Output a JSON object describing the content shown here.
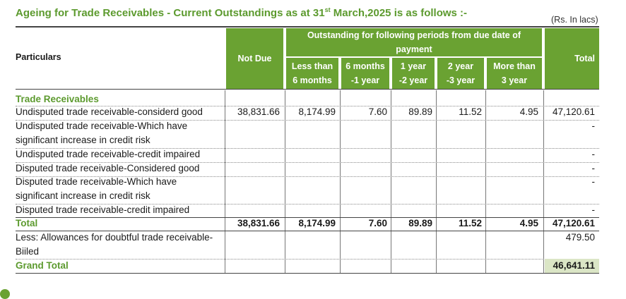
{
  "title_main": "Ageing for Trade Receivables - Current Outstandings as at 31",
  "title_sup": "st",
  "title_tail": " March,2025 is as follows :-",
  "unit_note": "(Rs. In lacs)",
  "header": {
    "particulars": "Particulars",
    "not_due": "Not Due",
    "outstanding_1": "Outstanding for following periods from due date of",
    "outstanding_2": "payment",
    "periods": [
      {
        "l1": "Less than",
        "l2": "6 months"
      },
      {
        "l1": "6 months",
        "l2": "-1 year"
      },
      {
        "l1": "1 year",
        "l2": "-2 year"
      },
      {
        "l1": "2 year",
        "l2": "-3 year"
      },
      {
        "l1": "More than",
        "l2": "3 year"
      }
    ],
    "total": "Total"
  },
  "section_label": "Trade Receivables",
  "rows": [
    {
      "label": "Undisputed trade receivable-considerd good",
      "values": [
        "38,831.66",
        "8,174.99",
        "7.60",
        "89.89",
        "11.52",
        "4.95",
        "47,120.61"
      ]
    },
    {
      "label_1": "Undisputed trade receivable-Which have",
      "label_2": "significant increase in credit risk",
      "total": "-"
    },
    {
      "label": "Undisputed trade receivable-credit impaired",
      "total": "-"
    },
    {
      "label": "Disputed trade receivable-Considered good",
      "total": "-"
    },
    {
      "label_1": "Disputed trade receivable-Which have",
      "label_2": "significant increase in credit risk",
      "total": "-"
    },
    {
      "label": "Disputed trade receivable-credit impaired",
      "total": "-"
    }
  ],
  "total_row": {
    "label": "Total",
    "values": [
      "38,831.66",
      "8,174.99",
      "7.60",
      "89.89",
      "11.52",
      "4.95",
      "47,120.61"
    ]
  },
  "less_row": {
    "label_1": "Less: Allowances for doubtful trade receivable-",
    "label_2": "Biiled",
    "total": "479.50"
  },
  "grand_total": {
    "label": "Grand Total",
    "total": "46,641.11"
  }
}
